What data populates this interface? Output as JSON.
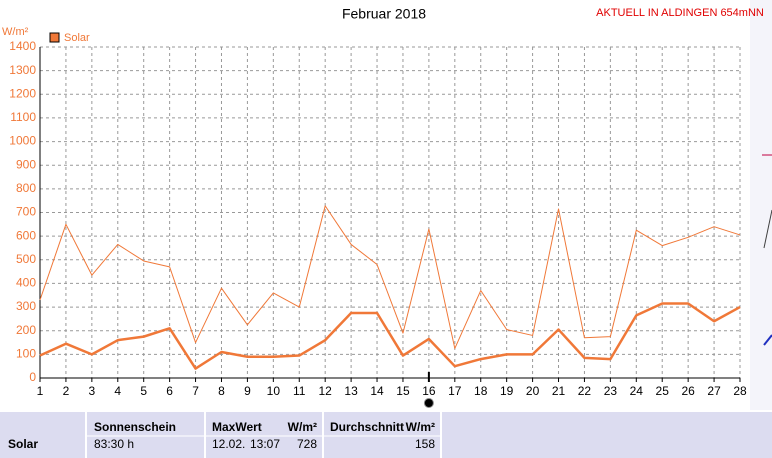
{
  "chart_data": {
    "type": "line",
    "title": "Februar 2018",
    "annotation": "AKTUELL IN ALDINGEN 654mNN",
    "y_unit": "W/m²",
    "legend": "Solar",
    "x": [
      1,
      2,
      3,
      4,
      5,
      6,
      7,
      8,
      9,
      10,
      11,
      12,
      13,
      14,
      15,
      16,
      17,
      18,
      19,
      20,
      21,
      22,
      23,
      24,
      25,
      26,
      27,
      28
    ],
    "series": [
      {
        "color": "#f07838",
        "values": [
          330,
          650,
          435,
          565,
          495,
          470,
          150,
          380,
          225,
          360,
          300,
          728,
          565,
          480,
          190,
          630,
          125,
          370,
          205,
          180,
          715,
          170,
          175,
          625,
          560,
          595,
          640,
          605
        ]
      },
      {
        "color": "#f07838",
        "values": [
          95,
          145,
          100,
          160,
          175,
          210,
          40,
          110,
          90,
          90,
          95,
          160,
          275,
          275,
          95,
          165,
          50,
          80,
          100,
          100,
          205,
          85,
          80,
          265,
          315,
          315,
          240,
          300
        ]
      }
    ],
    "xlim": [
      1,
      28
    ],
    "xticks": [
      1,
      2,
      3,
      4,
      5,
      6,
      7,
      8,
      9,
      10,
      11,
      12,
      13,
      14,
      15,
      16,
      17,
      18,
      19,
      20,
      21,
      22,
      23,
      24,
      25,
      26,
      27,
      28
    ],
    "ylim": [
      0,
      1400
    ],
    "yticks": [
      0,
      100,
      200,
      300,
      400,
      500,
      600,
      700,
      800,
      900,
      1000,
      1100,
      1200,
      1300,
      1400
    ],
    "grid": true
  },
  "summary": {
    "label": "Solar",
    "columns": [
      {
        "header": "Sonnenschein",
        "value": "83:30 h"
      },
      {
        "header": "MaxWert",
        "unit": "W/m²",
        "date": "12.02.",
        "time": "13:07",
        "value": "728"
      },
      {
        "header": "Durchschnitt",
        "unit": "W/m²",
        "value": "158"
      }
    ]
  }
}
